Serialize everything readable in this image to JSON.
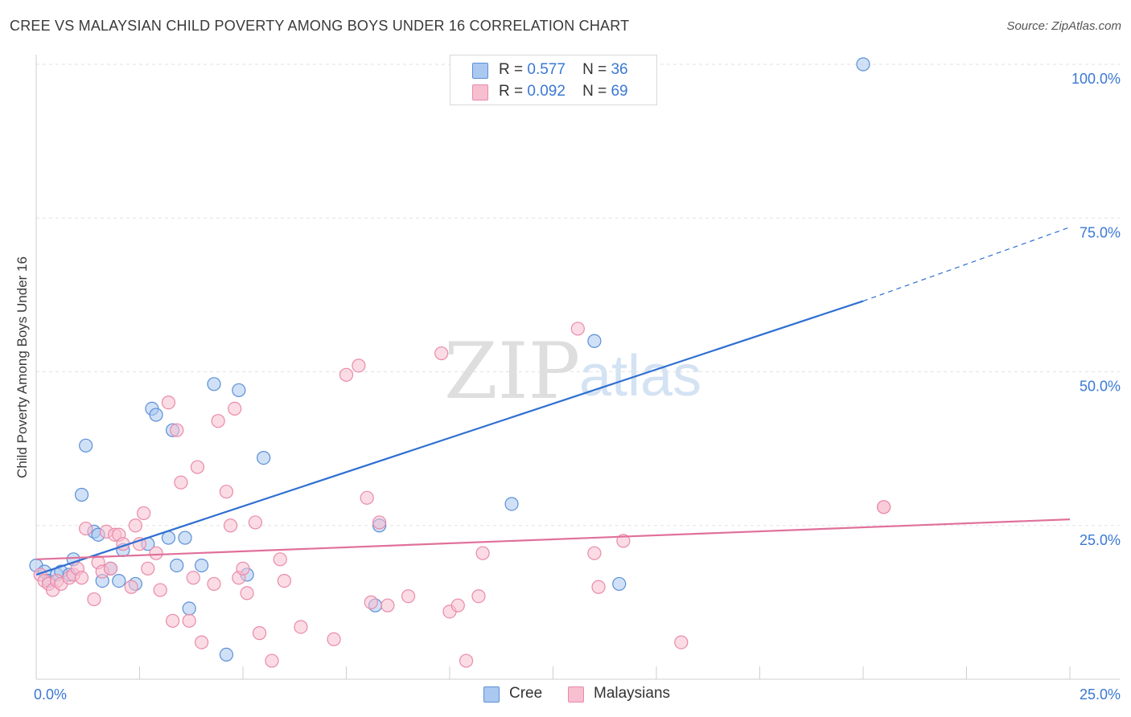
{
  "title": "CREE VS MALAYSIAN CHILD POVERTY AMONG BOYS UNDER 16 CORRELATION CHART",
  "source": "Source: ZipAtlas.com",
  "watermark": {
    "zip": "ZIP",
    "atlas": "atlas"
  },
  "colors": {
    "cree_fill": "#aac8f0",
    "cree_stroke": "#5b8fd6",
    "cree_line": "#2f6fd1",
    "malay_fill": "#f7bfd0",
    "malay_stroke": "#e98aaa",
    "malay_line": "#e0709a",
    "tick_text": "#3a78d4",
    "grid": "#e2e2e2"
  },
  "legend": {
    "rows": [
      {
        "series": "cree",
        "r_label": "R =",
        "r_value": "0.577",
        "n_label": "N =",
        "n_value": "36"
      },
      {
        "series": "malay",
        "r_label": "R =",
        "r_value": "0.092",
        "n_label": "N =",
        "n_value": "69"
      }
    ]
  },
  "bottom_legend": {
    "cree": "Cree",
    "malay": "Malaysians"
  },
  "chart_data": {
    "type": "scatter",
    "title": "CREE VS MALAYSIAN CHILD POVERTY AMONG BOYS UNDER 16 CORRELATION CHART",
    "xlabel": "",
    "ylabel": "Child Poverty Among Boys Under 16",
    "xlim": [
      0,
      25
    ],
    "ylim": [
      0,
      105
    ],
    "x_tick_labels": [
      "0.0%",
      "25.0%"
    ],
    "y_tick_labels": [
      "25.0%",
      "50.0%",
      "75.0%",
      "100.0%"
    ],
    "y_ticks": [
      25,
      50,
      75,
      100
    ],
    "series": [
      {
        "name": "Cree",
        "key": "cree",
        "points": [
          [
            0.0,
            18.5
          ],
          [
            0.2,
            17.5
          ],
          [
            0.3,
            16.0
          ],
          [
            0.5,
            17.0
          ],
          [
            0.6,
            17.5
          ],
          [
            0.8,
            17.0
          ],
          [
            0.9,
            19.5
          ],
          [
            1.1,
            30.0
          ],
          [
            1.2,
            38.0
          ],
          [
            1.4,
            24.0
          ],
          [
            1.5,
            23.5
          ],
          [
            1.6,
            16.0
          ],
          [
            1.8,
            18.0
          ],
          [
            2.0,
            16.0
          ],
          [
            2.1,
            21.0
          ],
          [
            2.4,
            15.5
          ],
          [
            2.7,
            22.0
          ],
          [
            2.8,
            44.0
          ],
          [
            2.9,
            43.0
          ],
          [
            3.2,
            23.0
          ],
          [
            3.3,
            40.5
          ],
          [
            3.4,
            18.5
          ],
          [
            3.6,
            23.0
          ],
          [
            3.7,
            11.5
          ],
          [
            4.0,
            18.5
          ],
          [
            4.3,
            48.0
          ],
          [
            4.6,
            4.0
          ],
          [
            4.9,
            47.0
          ],
          [
            5.1,
            17.0
          ],
          [
            5.5,
            36.0
          ],
          [
            8.2,
            12.0
          ],
          [
            8.3,
            25.0
          ],
          [
            11.5,
            28.5
          ],
          [
            13.5,
            55.0
          ],
          [
            14.1,
            15.5
          ],
          [
            20.0,
            100.0
          ]
        ],
        "trend": {
          "x0": 0.0,
          "y0": 17.0,
          "x1": 20.0,
          "y1": 61.5,
          "dash_x1": 25.0,
          "dash_y1": 73.5
        }
      },
      {
        "name": "Malaysians",
        "key": "malay",
        "points": [
          [
            0.1,
            17.0
          ],
          [
            0.2,
            16.0
          ],
          [
            0.3,
            15.5
          ],
          [
            0.4,
            14.5
          ],
          [
            0.5,
            16.0
          ],
          [
            0.6,
            15.5
          ],
          [
            0.8,
            16.5
          ],
          [
            0.9,
            17.0
          ],
          [
            1.0,
            18.0
          ],
          [
            1.1,
            16.5
          ],
          [
            1.2,
            24.5
          ],
          [
            1.4,
            13.0
          ],
          [
            1.5,
            19.0
          ],
          [
            1.6,
            17.5
          ],
          [
            1.7,
            24.0
          ],
          [
            1.8,
            18.0
          ],
          [
            1.9,
            23.5
          ],
          [
            2.0,
            23.5
          ],
          [
            2.1,
            22.0
          ],
          [
            2.3,
            15.0
          ],
          [
            2.4,
            25.0
          ],
          [
            2.5,
            22.0
          ],
          [
            2.6,
            27.0
          ],
          [
            2.7,
            18.0
          ],
          [
            2.9,
            20.5
          ],
          [
            3.0,
            14.5
          ],
          [
            3.2,
            45.0
          ],
          [
            3.3,
            9.5
          ],
          [
            3.4,
            40.5
          ],
          [
            3.5,
            32.0
          ],
          [
            3.7,
            9.5
          ],
          [
            3.8,
            16.5
          ],
          [
            3.9,
            34.5
          ],
          [
            4.0,
            6.0
          ],
          [
            4.3,
            15.5
          ],
          [
            4.4,
            42.0
          ],
          [
            4.6,
            30.5
          ],
          [
            4.7,
            25.0
          ],
          [
            4.8,
            44.0
          ],
          [
            4.9,
            16.5
          ],
          [
            5.0,
            18.0
          ],
          [
            5.1,
            14.0
          ],
          [
            5.3,
            25.5
          ],
          [
            5.4,
            7.5
          ],
          [
            5.7,
            3.0
          ],
          [
            5.9,
            19.5
          ],
          [
            6.0,
            16.0
          ],
          [
            6.4,
            8.5
          ],
          [
            7.2,
            6.5
          ],
          [
            7.5,
            49.5
          ],
          [
            7.8,
            51.0
          ],
          [
            8.0,
            29.5
          ],
          [
            8.1,
            12.5
          ],
          [
            8.3,
            25.5
          ],
          [
            8.5,
            12.0
          ],
          [
            9.0,
            13.5
          ],
          [
            9.8,
            53.0
          ],
          [
            10.0,
            11.0
          ],
          [
            10.2,
            12.0
          ],
          [
            10.4,
            3.0
          ],
          [
            10.7,
            13.5
          ],
          [
            10.8,
            20.5
          ],
          [
            13.1,
            57.0
          ],
          [
            13.5,
            20.5
          ],
          [
            13.6,
            15.0
          ],
          [
            14.2,
            22.5
          ],
          [
            15.6,
            6.0
          ],
          [
            20.5,
            28.0
          ],
          [
            20.5,
            28.0
          ]
        ],
        "trend": {
          "x0": 0.0,
          "y0": 19.5,
          "x1": 25.0,
          "y1": 26.0
        }
      }
    ]
  }
}
